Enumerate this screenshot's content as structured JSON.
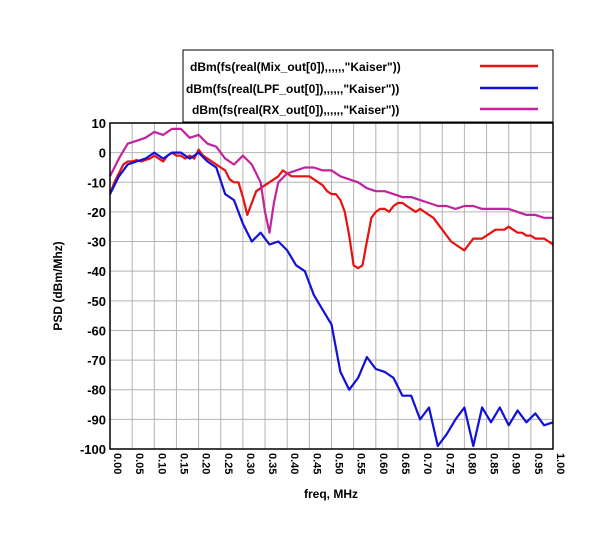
{
  "chart_data": {
    "type": "line",
    "xlabel": "freq, MHz",
    "ylabel": "PSD (dBm/Mhz)",
    "xlim": [
      0,
      1
    ],
    "ylim": [
      -100,
      10
    ],
    "x_ticks": [
      0.0,
      0.05,
      0.1,
      0.15,
      0.2,
      0.25,
      0.3,
      0.35,
      0.4,
      0.45,
      0.5,
      0.55,
      0.6,
      0.65,
      0.7,
      0.75,
      0.8,
      0.85,
      0.9,
      0.95,
      1.0
    ],
    "x_tick_labels": [
      "0.00",
      "0.05",
      "0.10",
      "0.15",
      "0.20",
      "0.25",
      "0.30",
      "0.35",
      "0.40",
      "0.45",
      "0.50",
      "0.55",
      "0.60",
      "0.65",
      "0.70",
      "0.75",
      "0.80",
      "0.85",
      "0.90",
      "0.95",
      "1.00"
    ],
    "y_ticks": [
      10,
      0,
      -10,
      -20,
      -30,
      -40,
      -50,
      -60,
      -70,
      -80,
      -90,
      -100
    ],
    "y_tick_labels": [
      "10",
      "0",
      "-10",
      "-20",
      "-30",
      "-40",
      "-50",
      "-60",
      "-70",
      "-80",
      "-90",
      "-100"
    ],
    "grid": true,
    "legend_position": "top-right",
    "series": [
      {
        "name": "dBm(fs(real(Mix_out[0]),,,,,,\"Kaiser\"))",
        "color": "#e81010",
        "x": [
          0.0,
          0.01,
          0.02,
          0.03,
          0.04,
          0.05,
          0.06,
          0.07,
          0.08,
          0.09,
          0.1,
          0.11,
          0.12,
          0.13,
          0.14,
          0.15,
          0.16,
          0.17,
          0.18,
          0.19,
          0.2,
          0.21,
          0.22,
          0.23,
          0.24,
          0.25,
          0.26,
          0.27,
          0.28,
          0.29,
          0.3,
          0.31,
          0.32,
          0.33,
          0.34,
          0.35,
          0.36,
          0.37,
          0.38,
          0.39,
          0.4,
          0.41,
          0.42,
          0.43,
          0.44,
          0.45,
          0.46,
          0.47,
          0.48,
          0.49,
          0.5,
          0.51,
          0.52,
          0.53,
          0.54,
          0.55,
          0.56,
          0.57,
          0.58,
          0.59,
          0.6,
          0.61,
          0.62,
          0.63,
          0.64,
          0.65,
          0.66,
          0.67,
          0.68,
          0.69,
          0.7,
          0.71,
          0.72,
          0.73,
          0.74,
          0.75,
          0.76,
          0.77,
          0.78,
          0.79,
          0.8,
          0.81,
          0.82,
          0.83,
          0.84,
          0.85,
          0.86,
          0.87,
          0.88,
          0.89,
          0.9,
          0.91,
          0.92,
          0.93,
          0.94,
          0.95,
          0.96,
          0.97,
          0.98,
          0.99,
          1.0
        ],
        "y": [
          -14,
          -10,
          -7,
          -4,
          -3,
          -3,
          -2.5,
          -3,
          -2.5,
          -2,
          -1,
          -2,
          -3,
          -1,
          0,
          -1,
          -1,
          -2,
          -1,
          -2,
          1,
          -1,
          -2,
          -3,
          -4,
          -5,
          -6,
          -9,
          -10,
          -10,
          -15,
          -21,
          -17,
          -13,
          -12,
          -11,
          -10,
          -9,
          -8,
          -6,
          -7,
          -8,
          -8,
          -8,
          -8,
          -8,
          -9,
          -10,
          -11,
          -13,
          -14,
          -14,
          -16,
          -20,
          -28,
          -38,
          -39,
          -38,
          -30,
          -22,
          -20,
          -19,
          -19,
          -20,
          -18,
          -17,
          -17,
          -18,
          -19,
          -20,
          -19,
          -20,
          -21,
          -22,
          -24,
          -26,
          -28,
          -30,
          -31,
          -32,
          -33,
          -31,
          -29,
          -29,
          -29,
          -28,
          -27,
          -26,
          -26,
          -26,
          -25,
          -26,
          -27,
          -27,
          -28,
          -28,
          -29,
          -29,
          -29,
          -30,
          -31
        ],
        "dense_y_override": true
      },
      {
        "name": "dBm(fs(real(LPF_out[0]),,,,,,\"Kaiser\"))",
        "color": "#1010d8",
        "x": [
          0.0,
          0.02,
          0.04,
          0.06,
          0.08,
          0.1,
          0.12,
          0.14,
          0.16,
          0.18,
          0.2,
          0.22,
          0.24,
          0.26,
          0.28,
          0.3,
          0.32,
          0.34,
          0.36,
          0.38,
          0.4,
          0.42,
          0.44,
          0.46,
          0.48,
          0.5,
          0.52,
          0.54,
          0.56,
          0.58,
          0.6,
          0.62,
          0.64,
          0.66,
          0.68,
          0.7,
          0.72,
          0.74,
          0.76,
          0.78,
          0.8,
          0.82,
          0.84,
          0.86,
          0.88,
          0.9,
          0.92,
          0.94,
          0.96,
          0.98,
          1.0
        ],
        "y": [
          -14,
          -8,
          -4,
          -3,
          -2,
          0,
          -2,
          0,
          0,
          -2,
          0,
          -3,
          -5,
          -14,
          -16,
          -24,
          -30,
          -27,
          -31,
          -30,
          -33,
          -38,
          -40,
          -48,
          -53,
          -58,
          -74,
          -80,
          -76,
          -69,
          -73,
          -74,
          -76,
          -82,
          -82,
          -90,
          -86,
          -99,
          -95,
          -90,
          -86,
          -99,
          -86,
          -91,
          -86,
          -92,
          -87,
          -91,
          -88,
          -92,
          -91
        ]
      },
      {
        "name": "dBm(fs(real(RX_out[0]),,,,,,\"Kaiser\"))",
        "color": "#c0249c",
        "x": [
          0.0,
          0.02,
          0.04,
          0.06,
          0.08,
          0.1,
          0.12,
          0.14,
          0.16,
          0.18,
          0.2,
          0.22,
          0.24,
          0.26,
          0.28,
          0.3,
          0.32,
          0.34,
          0.35,
          0.36,
          0.37,
          0.38,
          0.4,
          0.42,
          0.44,
          0.46,
          0.48,
          0.5,
          0.52,
          0.54,
          0.56,
          0.58,
          0.6,
          0.62,
          0.64,
          0.66,
          0.68,
          0.7,
          0.72,
          0.74,
          0.76,
          0.78,
          0.8,
          0.82,
          0.84,
          0.86,
          0.88,
          0.9,
          0.92,
          0.94,
          0.96,
          0.98,
          1.0
        ],
        "y": [
          -8,
          -2,
          3,
          4,
          5,
          7,
          6,
          8,
          8,
          5,
          6,
          3,
          2,
          -2,
          -4,
          -1,
          -4,
          -10,
          -20,
          -27,
          -17,
          -10,
          -7,
          -6,
          -5,
          -5,
          -6,
          -6,
          -8,
          -9,
          -10,
          -12,
          -13,
          -13,
          -14,
          -15,
          -15,
          -16,
          -17,
          -18,
          -18,
          -19,
          -18,
          -18,
          -19,
          -19,
          -19,
          -19,
          -20,
          -21,
          -21,
          -22,
          -22
        ]
      }
    ]
  }
}
